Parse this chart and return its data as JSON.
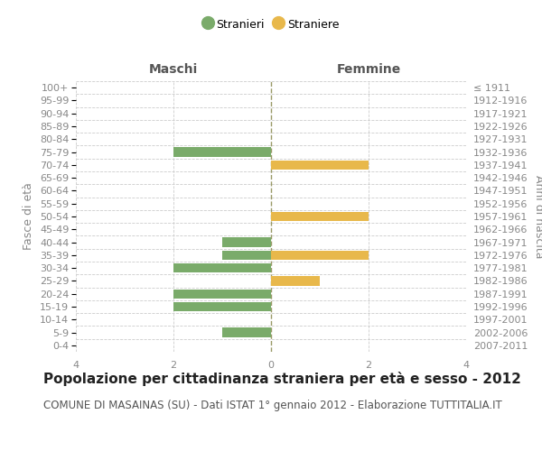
{
  "age_groups": [
    "0-4",
    "5-9",
    "10-14",
    "15-19",
    "20-24",
    "25-29",
    "30-34",
    "35-39",
    "40-44",
    "45-49",
    "50-54",
    "55-59",
    "60-64",
    "65-69",
    "70-74",
    "75-79",
    "80-84",
    "85-89",
    "90-94",
    "95-99",
    "100+"
  ],
  "birth_years": [
    "2007-2011",
    "2002-2006",
    "1997-2001",
    "1992-1996",
    "1987-1991",
    "1982-1986",
    "1977-1981",
    "1972-1976",
    "1967-1971",
    "1962-1966",
    "1957-1961",
    "1952-1956",
    "1947-1951",
    "1942-1946",
    "1937-1941",
    "1932-1936",
    "1927-1931",
    "1922-1926",
    "1917-1921",
    "1912-1916",
    "≤ 1911"
  ],
  "maschi": [
    0,
    -1,
    0,
    -2,
    -2,
    0,
    -2,
    -1,
    -1,
    0,
    0,
    0,
    0,
    0,
    0,
    -2,
    0,
    0,
    0,
    0,
    0
  ],
  "femmine": [
    0,
    0,
    0,
    0,
    0,
    1,
    0,
    2,
    0,
    0,
    2,
    0,
    0,
    0,
    2,
    0,
    0,
    0,
    0,
    0,
    0
  ],
  "maschi_color": "#7aab6a",
  "femmine_color": "#e8b84b",
  "grid_color": "#cccccc",
  "center_line_color": "#999966",
  "title": "Popolazione per cittadinanza straniera per età e sesso - 2012",
  "subtitle": "COMUNE DI MASAINAS (SU) - Dati ISTAT 1° gennaio 2012 - Elaborazione TUTTITALIA.IT",
  "ylabel_left": "Fasce di età",
  "ylabel_right": "Anni di nascita",
  "xlabel_maschi": "Maschi",
  "xlabel_femmine": "Femmine",
  "legend_maschi": "Stranieri",
  "legend_femmine": "Straniere",
  "xlim": [
    -4,
    4
  ],
  "xticks": [
    -4,
    -2,
    0,
    2,
    4
  ],
  "xticklabels": [
    "4",
    "2",
    "0",
    "2",
    "4"
  ],
  "background_color": "#ffffff",
  "bar_height": 0.72,
  "label_color": "#888888",
  "title_fontsize": 11,
  "subtitle_fontsize": 8.5
}
